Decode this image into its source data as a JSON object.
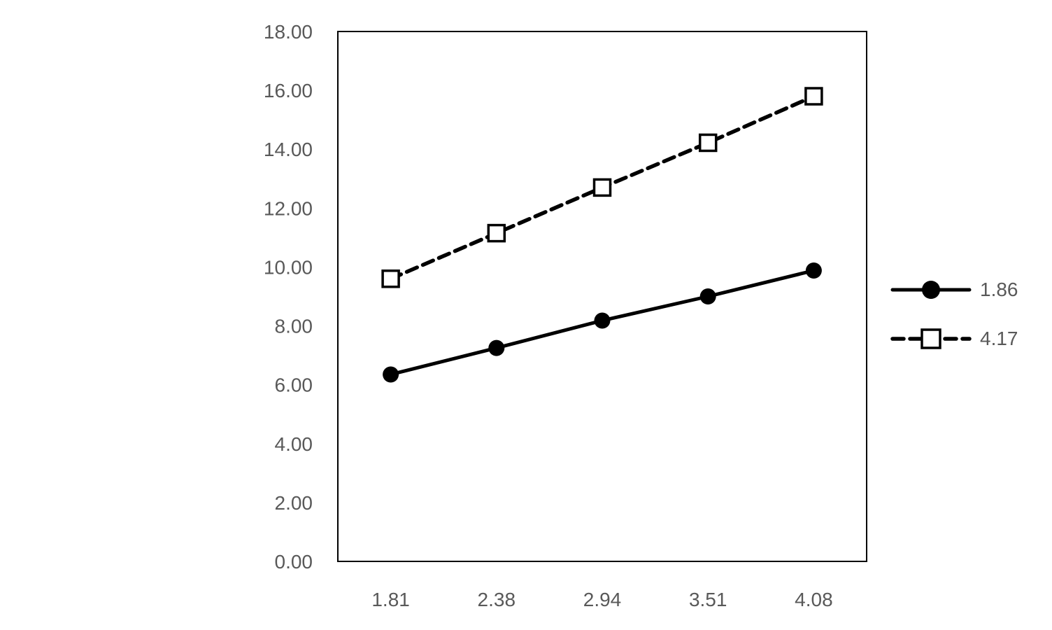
{
  "page": {
    "background_color": "#ffffff"
  },
  "chart_data": {
    "type": "line",
    "title": "",
    "xlabel": "",
    "ylabel": "",
    "categories": [
      "1.81",
      "2.38",
      "2.94",
      "3.51",
      "4.08"
    ],
    "series": [
      {
        "name": "1.86",
        "line_style": "solid",
        "marker": "filled-circle",
        "color": "#000000",
        "values": [
          6.35,
          7.25,
          8.18,
          9.0,
          9.88
        ]
      },
      {
        "name": "4.17",
        "line_style": "dashed",
        "marker": "open-square",
        "color": "#000000",
        "values": [
          9.6,
          11.15,
          12.7,
          14.22,
          15.8
        ]
      }
    ],
    "ylim": [
      0,
      18
    ],
    "ytick_step": 2,
    "ytick_labels": [
      "0.00",
      "2.00",
      "4.00",
      "6.00",
      "8.00",
      "10.00",
      "12.00",
      "14.00",
      "16.00",
      "18.00"
    ],
    "grid": false,
    "legend_position": "right",
    "axis_text_color": "#595959",
    "plot_border_color": "#000000",
    "plot_background": "#ffffff"
  }
}
